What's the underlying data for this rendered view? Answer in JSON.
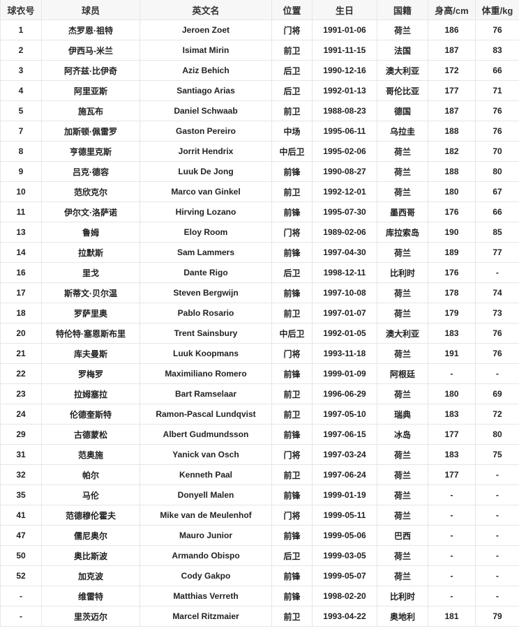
{
  "table": {
    "headers": [
      "球衣号",
      "球员",
      "英文名",
      "位置",
      "生日",
      "国籍",
      "身高/cm",
      "体重/kg"
    ],
    "rows": [
      [
        "1",
        "杰罗恩·祖特",
        "Jeroen Zoet",
        "门将",
        "1991-01-06",
        "荷兰",
        "186",
        "76"
      ],
      [
        "2",
        "伊西马-米兰",
        "Isimat Mirin",
        "前卫",
        "1991-11-15",
        "法国",
        "187",
        "83"
      ],
      [
        "3",
        "阿齐兹·比伊奇",
        "Aziz Behich",
        "后卫",
        "1990-12-16",
        "澳大利亚",
        "172",
        "66"
      ],
      [
        "4",
        "阿里亚斯",
        "Santiago Arias",
        "后卫",
        "1992-01-13",
        "哥伦比亚",
        "177",
        "71"
      ],
      [
        "5",
        "施瓦布",
        "Daniel Schwaab",
        "前卫",
        "1988-08-23",
        "德国",
        "187",
        "76"
      ],
      [
        "7",
        "加斯顿·佩雷罗",
        "Gaston Pereiro",
        "中场",
        "1995-06-11",
        "乌拉圭",
        "188",
        "76"
      ],
      [
        "8",
        "亨德里克斯",
        "Jorrit Hendrix",
        "中后卫",
        "1995-02-06",
        "荷兰",
        "182",
        "70"
      ],
      [
        "9",
        "吕克·德容",
        "Luuk De Jong",
        "前锋",
        "1990-08-27",
        "荷兰",
        "188",
        "80"
      ],
      [
        "10",
        "范欣克尔",
        "Marco van Ginkel",
        "前卫",
        "1992-12-01",
        "荷兰",
        "180",
        "67"
      ],
      [
        "11",
        "伊尔文·洛萨诺",
        "Hirving Lozano",
        "前锋",
        "1995-07-30",
        "墨西哥",
        "176",
        "66"
      ],
      [
        "13",
        "鲁姆",
        "Eloy Room",
        "门将",
        "1989-02-06",
        "库拉索岛",
        "190",
        "85"
      ],
      [
        "14",
        "拉默斯",
        "Sam Lammers",
        "前锋",
        "1997-04-30",
        "荷兰",
        "189",
        "77"
      ],
      [
        "16",
        "里戈",
        "Dante Rigo",
        "后卫",
        "1998-12-11",
        "比利时",
        "176",
        "-"
      ],
      [
        "17",
        "斯蒂文·贝尔温",
        "Steven Bergwijn",
        "前锋",
        "1997-10-08",
        "荷兰",
        "178",
        "74"
      ],
      [
        "18",
        "罗萨里奥",
        "Pablo Rosario",
        "前卫",
        "1997-01-07",
        "荷兰",
        "179",
        "73"
      ],
      [
        "20",
        "特伦特·塞恩斯布里",
        "Trent Sainsbury",
        "中后卫",
        "1992-01-05",
        "澳大利亚",
        "183",
        "76"
      ],
      [
        "21",
        "库夫曼斯",
        "Luuk Koopmans",
        "门将",
        "1993-11-18",
        "荷兰",
        "191",
        "76"
      ],
      [
        "22",
        "罗梅罗",
        "Maximiliano Romero",
        "前锋",
        "1999-01-09",
        "阿根廷",
        "-",
        "-"
      ],
      [
        "23",
        "拉姆塞拉",
        "Bart Ramselaar",
        "前卫",
        "1996-06-29",
        "荷兰",
        "180",
        "69"
      ],
      [
        "24",
        "伦德奎斯特",
        "Ramon-Pascal Lundqvist",
        "前卫",
        "1997-05-10",
        "瑞典",
        "183",
        "72"
      ],
      [
        "29",
        "古德蒙松",
        "Albert Gudmundsson",
        "前锋",
        "1997-06-15",
        "冰岛",
        "177",
        "80"
      ],
      [
        "31",
        "范奥施",
        "Yanick van Osch",
        "门将",
        "1997-03-24",
        "荷兰",
        "183",
        "75"
      ],
      [
        "32",
        "帕尔",
        "Kenneth Paal",
        "前卫",
        "1997-06-24",
        "荷兰",
        "177",
        "-"
      ],
      [
        "35",
        "马伦",
        "Donyell Malen",
        "前锋",
        "1999-01-19",
        "荷兰",
        "-",
        "-"
      ],
      [
        "41",
        "范德穆伦霍夫",
        "Mike van de Meulenhof",
        "门将",
        "1999-05-11",
        "荷兰",
        "-",
        "-"
      ],
      [
        "47",
        "儒尼奥尔",
        "Mauro Junior",
        "前锋",
        "1999-05-06",
        "巴西",
        "-",
        "-"
      ],
      [
        "50",
        "奥比斯波",
        "Armando Obispo",
        "后卫",
        "1999-03-05",
        "荷兰",
        "-",
        "-"
      ],
      [
        "52",
        "加克波",
        "Cody Gakpo",
        "前锋",
        "1999-05-07",
        "荷兰",
        "-",
        "-"
      ],
      [
        "-",
        "维雷特",
        "Matthias Verreth",
        "前锋",
        "1998-02-20",
        "比利时",
        "-",
        "-"
      ],
      [
        "-",
        "里茨迈尔",
        "Marcel Ritzmaier",
        "前卫",
        "1993-04-22",
        "奥地利",
        "181",
        "79"
      ]
    ]
  }
}
